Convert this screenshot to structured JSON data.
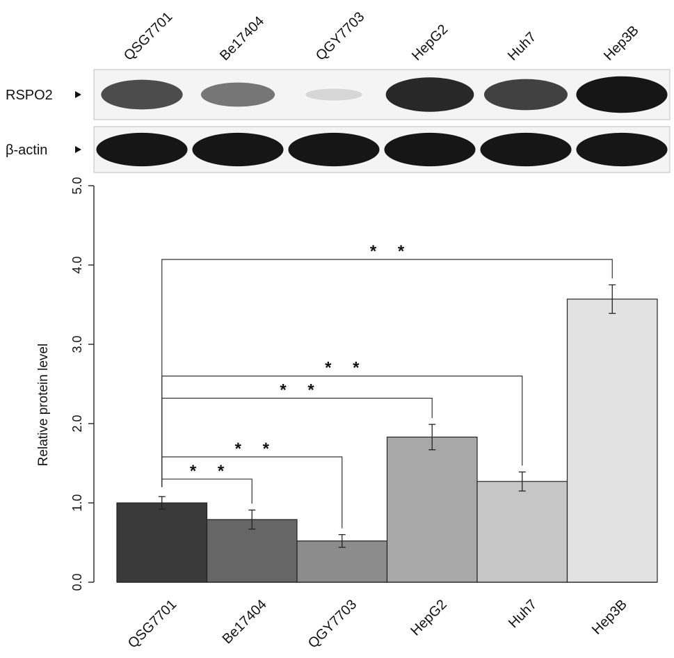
{
  "blot": {
    "lanes": [
      "QSG7701",
      "Be17404",
      "QGY7703",
      "HepG2",
      "Huh7",
      "Hep3B"
    ],
    "rows": [
      {
        "label": "RSPO2",
        "intensity": [
          0.75,
          0.55,
          0.1,
          0.92,
          0.8,
          1.0
        ]
      },
      {
        "label": "β-actin",
        "intensity": [
          1.0,
          1.0,
          1.0,
          1.0,
          1.0,
          1.0
        ]
      }
    ]
  },
  "chart_data": {
    "type": "bar",
    "ylabel": "Relative protein level",
    "ylim": [
      0,
      5
    ],
    "yticks": [
      "0.0",
      "1.0",
      "2.0",
      "3.0",
      "4.0",
      "5.0"
    ],
    "categories": [
      "QSG7701",
      "Be17404",
      "QGY7703",
      "HepG2",
      "Huh7",
      "Hep3B"
    ],
    "values": [
      1.0,
      0.79,
      0.52,
      1.83,
      1.27,
      3.57
    ],
    "errors": [
      0.08,
      0.12,
      0.08,
      0.16,
      0.12,
      0.18
    ],
    "colors": [
      "#3a3a3a",
      "#666666",
      "#8c8c8c",
      "#a8a8a8",
      "#c6c6c6",
      "#e2e2e2"
    ],
    "comparisons": [
      {
        "from": 0,
        "to": 1,
        "y": 1.3,
        "label": "* *"
      },
      {
        "from": 0,
        "to": 2,
        "y": 1.58,
        "label": "* *"
      },
      {
        "from": 0,
        "to": 3,
        "y": 2.32,
        "label": "* *"
      },
      {
        "from": 0,
        "to": 4,
        "y": 2.6,
        "label": "* *"
      },
      {
        "from": 0,
        "to": 5,
        "y": 4.07,
        "label": "* *"
      }
    ]
  }
}
